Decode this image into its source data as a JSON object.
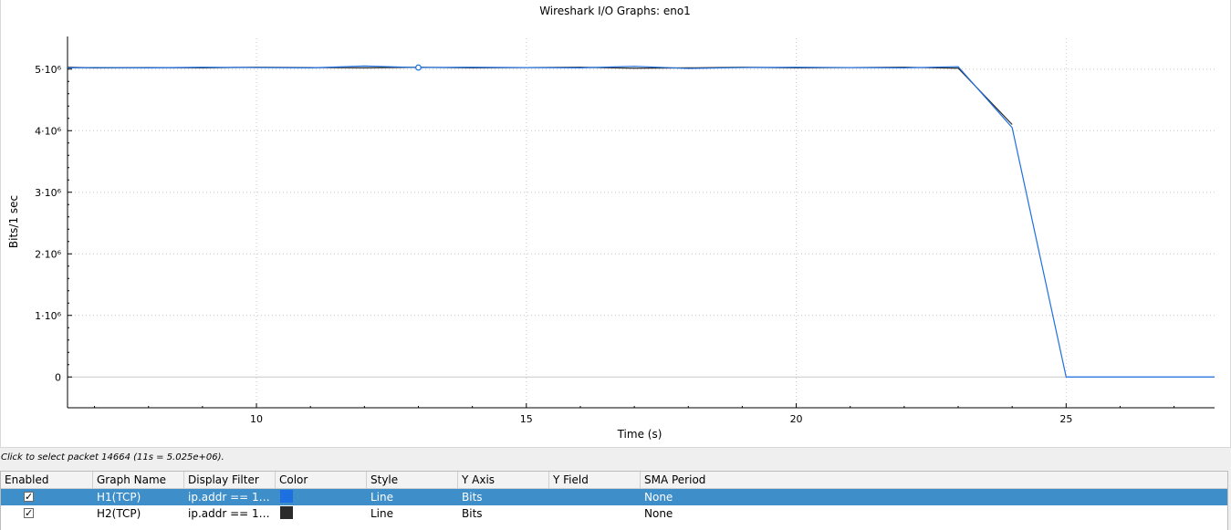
{
  "window": {
    "title": "Wireshark I/O Graphs: eno1"
  },
  "chart_data": {
    "type": "line",
    "title": "Wireshark I/O Graphs: eno1",
    "xlabel": "Time (s)",
    "ylabel": "Bits/1 sec",
    "xlim": [
      6.5,
      27.75
    ],
    "ylim": [
      -500000,
      5500000
    ],
    "x_ticks": [
      10,
      15,
      20,
      25
    ],
    "y_ticks": [
      {
        "value": 0,
        "label": "0"
      },
      {
        "value": 1000000,
        "label": "1·10⁶"
      },
      {
        "value": 2000000,
        "label": "2·10⁶"
      },
      {
        "value": 3000000,
        "label": "3·10⁶"
      },
      {
        "value": 4000000,
        "label": "4·10⁶"
      },
      {
        "value": 5000000,
        "label": "5·10⁶"
      }
    ],
    "grid": true,
    "series": [
      {
        "name": "H1(TCP)",
        "color": "#1e6fe0",
        "x": [
          6.5,
          7,
          8,
          9,
          10,
          11,
          12,
          13,
          14,
          15,
          16,
          17,
          18,
          19,
          20,
          21,
          22,
          23,
          24,
          25,
          26,
          27,
          27.75
        ],
        "values": [
          5020000,
          5025000,
          5020000,
          5030000,
          5025000,
          5020000,
          5050000,
          5025000,
          5030000,
          5025000,
          5020000,
          5045000,
          5010000,
          5025000,
          5030000,
          5025000,
          5020000,
          5040000,
          4050000,
          0,
          0,
          0,
          0
        ]
      },
      {
        "name": "H2(TCP)",
        "color": "#2b2b2b",
        "x": [
          6.5,
          7,
          8,
          9,
          10,
          11,
          12,
          13,
          14,
          15,
          16,
          17,
          18,
          19,
          20,
          21,
          22,
          23,
          24
        ],
        "values": [
          5030000,
          5020000,
          5025000,
          5020000,
          5030000,
          5025000,
          5020000,
          5030000,
          5020000,
          5025000,
          5030000,
          5015000,
          5020000,
          5030000,
          5020000,
          5025000,
          5030000,
          5015000,
          4100000
        ]
      }
    ],
    "marker": {
      "series": "H1(TCP)",
      "x": 13,
      "y": 5025000
    }
  },
  "status": {
    "text": "Click to select packet 14664 (11s = 5.025e+06)."
  },
  "table": {
    "headers": [
      "Enabled",
      "Graph Name",
      "Display Filter",
      "Color",
      "Style",
      "Y Axis",
      "Y Field",
      "SMA Period"
    ],
    "rows": [
      {
        "enabled": "✓",
        "name": "H1(TCP)",
        "filter": "ip.addr == 1…",
        "color": "#1e6fe0",
        "style": "Line",
        "y_axis": "Bits",
        "y_field": "",
        "sma": "None"
      },
      {
        "enabled": "✓",
        "name": "H2(TCP)",
        "filter": "ip.addr == 1…",
        "color": "#2b2b2b",
        "style": "Line",
        "y_axis": "Bits",
        "y_field": "",
        "sma": "None"
      }
    ]
  }
}
